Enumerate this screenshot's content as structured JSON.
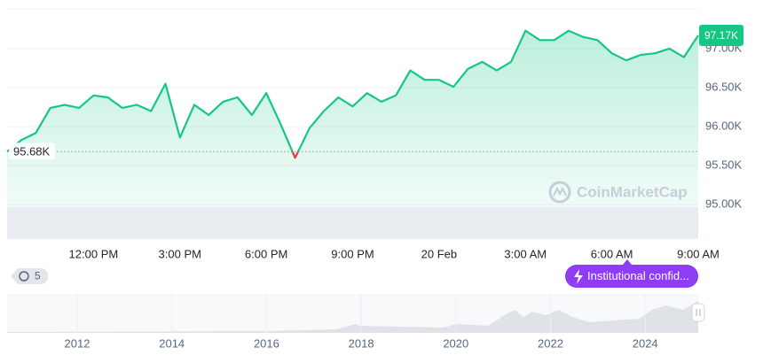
{
  "chart_data": {
    "type": "line",
    "categories": [
      null,
      null,
      null,
      null,
      null,
      null,
      "12:00 PM",
      null,
      null,
      null,
      null,
      null,
      "3:00 PM",
      null,
      null,
      null,
      null,
      null,
      "6:00 PM",
      null,
      null,
      null,
      null,
      null,
      "9:00 PM",
      null,
      null,
      null,
      null,
      null,
      "20 Feb",
      null,
      null,
      null,
      null,
      null,
      "3:00 AM",
      null,
      null,
      null,
      null,
      null,
      "6:00 AM",
      null,
      null,
      null,
      null,
      null,
      "9:00 AM"
    ],
    "values": [
      95680,
      95830,
      95920,
      96240,
      96280,
      96240,
      96400,
      96375,
      96240,
      96280,
      96200,
      96550,
      95860,
      96280,
      96150,
      96320,
      96375,
      96150,
      96430,
      96030,
      95600,
      95980,
      96200,
      96375,
      96260,
      96430,
      96320,
      96400,
      96720,
      96600,
      96600,
      96510,
      96740,
      96830,
      96720,
      96830,
      97230,
      97110,
      97110,
      97230,
      97150,
      97110,
      96940,
      96850,
      96920,
      96940,
      97000,
      96890,
      97170
    ],
    "value_labels": [
      null,
      null,
      null,
      null,
      null,
      null,
      null,
      null,
      null,
      null,
      null,
      null,
      null,
      null,
      null,
      null,
      null,
      null,
      null,
      null,
      null,
      null,
      null,
      null,
      null,
      null,
      null,
      null,
      null,
      null,
      null,
      null,
      null,
      null,
      null,
      null,
      null,
      null,
      null,
      null,
      null,
      null,
      null,
      null,
      null,
      null,
      null,
      null,
      "97.17K"
    ],
    "color": "#16c784",
    "down_color": "#ea3943",
    "reference": {
      "value": 95680,
      "label": "95.68K"
    },
    "ylim": [
      94560,
      97510
    ],
    "yticks": [
      {
        "value": 95000,
        "label": "95.00K"
      },
      {
        "value": 95500,
        "label": "95.50K"
      },
      {
        "value": 96000,
        "label": "96.00K"
      },
      {
        "value": 96500,
        "label": "96.50K"
      },
      {
        "value": 97000,
        "label": "97.00K"
      }
    ],
    "grid": true,
    "watermark": "CoinMarketCap"
  },
  "navigator": {
    "xticks": [
      "2012",
      "2014",
      "2016",
      "2018",
      "2020",
      "2022",
      "2024"
    ]
  },
  "history_badge": "5",
  "institutional_button": "Institutional confid..."
}
